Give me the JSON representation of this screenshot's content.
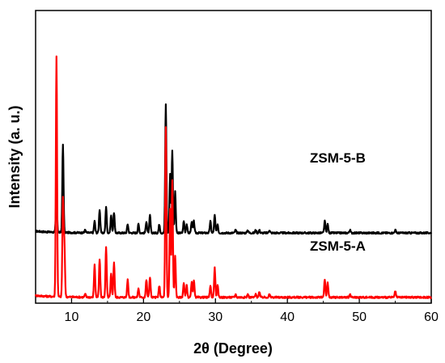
{
  "chart_data": {
    "type": "line",
    "title": "",
    "xlabel": "2θ (Degree)",
    "ylabel": "Intensity (a. u.)",
    "xlim": [
      5,
      60
    ],
    "x_ticks": [
      10,
      20,
      30,
      40,
      50,
      60
    ],
    "x_tick_labels": [
      "10",
      "20",
      "30",
      "40",
      "50",
      "60"
    ],
    "y_ticks_shown": false,
    "grid": false,
    "legend": "none",
    "series": [
      {
        "name": "ZSM-5-B",
        "color": "#000000",
        "baseline": 0.24,
        "peaks": [
          [
            7.9,
            0.13
          ],
          [
            8.8,
            0.3
          ],
          [
            11.9,
            0.01
          ],
          [
            13.2,
            0.04
          ],
          [
            13.9,
            0.08
          ],
          [
            14.8,
            0.09
          ],
          [
            15.5,
            0.06
          ],
          [
            15.9,
            0.07
          ],
          [
            17.8,
            0.03
          ],
          [
            19.3,
            0.03
          ],
          [
            20.4,
            0.04
          ],
          [
            20.9,
            0.06
          ],
          [
            22.2,
            0.03
          ],
          [
            23.1,
            0.44
          ],
          [
            23.7,
            0.2
          ],
          [
            24.0,
            0.28
          ],
          [
            24.4,
            0.14
          ],
          [
            25.6,
            0.04
          ],
          [
            26.0,
            0.03
          ],
          [
            26.7,
            0.04
          ],
          [
            27.0,
            0.04
          ],
          [
            29.3,
            0.04
          ],
          [
            29.9,
            0.06
          ],
          [
            30.3,
            0.03
          ],
          [
            32.8,
            0.01
          ],
          [
            34.5,
            0.01
          ],
          [
            35.6,
            0.01
          ],
          [
            36.1,
            0.01
          ],
          [
            37.5,
            0.01
          ],
          [
            45.2,
            0.04
          ],
          [
            45.6,
            0.03
          ],
          [
            48.7,
            0.01
          ],
          [
            55.0,
            0.01
          ]
        ]
      },
      {
        "name": "ZSM-5-A",
        "color": "#ff0000",
        "baseline": 0.02,
        "peaks": [
          [
            7.9,
            0.82
          ],
          [
            8.8,
            0.33
          ],
          [
            9.0,
            0.18
          ],
          [
            11.9,
            0.01
          ],
          [
            13.2,
            0.11
          ],
          [
            13.9,
            0.13
          ],
          [
            14.8,
            0.17
          ],
          [
            15.5,
            0.08
          ],
          [
            15.9,
            0.12
          ],
          [
            17.8,
            0.06
          ],
          [
            19.3,
            0.03
          ],
          [
            20.4,
            0.06
          ],
          [
            20.9,
            0.07
          ],
          [
            22.2,
            0.04
          ],
          [
            23.1,
            0.58
          ],
          [
            23.7,
            0.3
          ],
          [
            24.0,
            0.4
          ],
          [
            24.4,
            0.14
          ],
          [
            25.6,
            0.05
          ],
          [
            26.0,
            0.04
          ],
          [
            26.7,
            0.05
          ],
          [
            27.0,
            0.06
          ],
          [
            29.3,
            0.04
          ],
          [
            29.9,
            0.1
          ],
          [
            30.3,
            0.04
          ],
          [
            32.8,
            0.01
          ],
          [
            34.5,
            0.01
          ],
          [
            35.6,
            0.01
          ],
          [
            36.1,
            0.02
          ],
          [
            37.5,
            0.01
          ],
          [
            45.2,
            0.06
          ],
          [
            45.6,
            0.05
          ],
          [
            48.7,
            0.01
          ],
          [
            55.0,
            0.02
          ]
        ]
      }
    ],
    "annotations": [
      {
        "text": "ZSM-5-B",
        "series": "ZSM-5-B"
      },
      {
        "text": "ZSM-5-A",
        "series": "ZSM-5-A"
      }
    ]
  }
}
